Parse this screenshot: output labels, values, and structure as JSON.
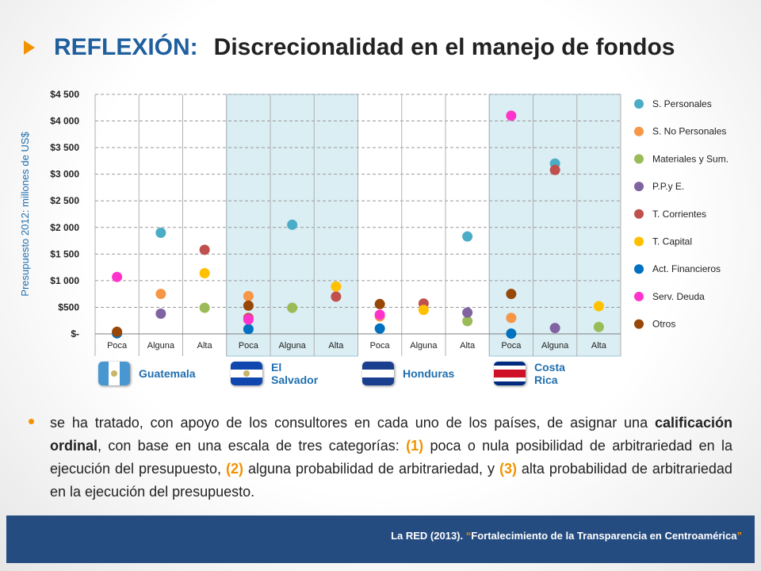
{
  "title": {
    "keyword": "REFLEXIÓN:",
    "rest": "Discrecionalidad en el manejo de fondos"
  },
  "chart_data": {
    "type": "scatter",
    "ylabel": "Presupuesto 2012: millones de US$",
    "ylim": [
      0,
      4500
    ],
    "yticks": [
      {
        "value": 0,
        "label": "$-"
      },
      {
        "value": 500,
        "label": "$500"
      },
      {
        "value": 1000,
        "label": "$1 000"
      },
      {
        "value": 1500,
        "label": "$1 500"
      },
      {
        "value": 2000,
        "label": "$2 000"
      },
      {
        "value": 2500,
        "label": "$2 500"
      },
      {
        "value": 3000,
        "label": "$3 000"
      },
      {
        "value": 3500,
        "label": "$3 500"
      },
      {
        "value": 4000,
        "label": "$4 000"
      },
      {
        "value": 4500,
        "label": "$4 500"
      }
    ],
    "categories": [
      "Poca",
      "Alguna",
      "Alta",
      "Poca",
      "Alguna",
      "Alta",
      "Poca",
      "Alguna",
      "Alta",
      "Poca",
      "Alguna",
      "Alta"
    ],
    "groups": [
      "Guatemala",
      "El Salvador",
      "Honduras",
      "Costa Rica"
    ],
    "highlighted_groups": [
      "El Salvador",
      "Costa Rica"
    ],
    "legend_position": "right",
    "series": [
      {
        "name": "S. Personales",
        "color": "#4bacc6",
        "values": [
          null,
          1900,
          null,
          null,
          2050,
          null,
          null,
          null,
          1830,
          null,
          3200,
          null
        ]
      },
      {
        "name": "S. No Personales",
        "color": "#f79646",
        "values": [
          null,
          750,
          null,
          710,
          null,
          null,
          330,
          null,
          null,
          300,
          null,
          null
        ]
      },
      {
        "name": "Materiales y Sum.",
        "color": "#9bbb59",
        "values": [
          null,
          null,
          490,
          null,
          490,
          null,
          null,
          null,
          240,
          null,
          null,
          130
        ]
      },
      {
        "name": "P.P.y E.",
        "color": "#8064a2",
        "values": [
          null,
          380,
          null,
          null,
          null,
          null,
          null,
          null,
          400,
          null,
          110,
          null
        ]
      },
      {
        "name": "T. Corrientes",
        "color": "#c0504d",
        "values": [
          null,
          null,
          1580,
          300,
          null,
          700,
          null,
          570,
          null,
          null,
          3080,
          null
        ]
      },
      {
        "name": "T. Capital",
        "color": "#ffc000",
        "values": [
          null,
          null,
          1140,
          null,
          null,
          890,
          null,
          450,
          null,
          null,
          null,
          520
        ]
      },
      {
        "name": "Act. Financieros",
        "color": "#0070c0",
        "values": [
          10,
          null,
          null,
          90,
          null,
          null,
          100,
          null,
          null,
          5,
          null,
          null
        ]
      },
      {
        "name": "Serv. Deuda",
        "color": "#ff33cc",
        "values": [
          1070,
          null,
          null,
          270,
          null,
          null,
          360,
          null,
          null,
          4100,
          null,
          null
        ]
      },
      {
        "name": "Otros",
        "color": "#974706",
        "values": [
          40,
          null,
          null,
          530,
          null,
          null,
          560,
          null,
          null,
          750,
          null,
          null
        ]
      }
    ]
  },
  "countries": [
    {
      "name": "Guatemala"
    },
    {
      "name": "El Salvador"
    },
    {
      "name": "Honduras"
    },
    {
      "name": "Costa Rica"
    }
  ],
  "body": {
    "p1": "se ha tratado, con apoyo de los consultores en cada uno de los países, de asignar una",
    "p2": "calificación ordinal",
    "p3": ", con base en una escala de tres categorías:",
    "n1": "(1)",
    "p4": "poca o nula posibilidad de arbitrariedad en la ejecución del presupuesto,",
    "n2": "(2)",
    "p5": "alguna probabilidad de arbitrariedad, y",
    "n3": "(3)",
    "p6": "alta probabilidad de arbitrariedad en la ejecución del presupuesto."
  },
  "footer": {
    "source": "La RED (2013).",
    "quote_open": "“",
    "title": "Fortalecimiento de la Transparencia en Centroamérica",
    "quote_close": "”"
  },
  "colors": {
    "accent": "#f39200",
    "title_blue": "#1f5f9e",
    "footer_bg": "#254c80",
    "highlight_band": "#dbeef3"
  }
}
